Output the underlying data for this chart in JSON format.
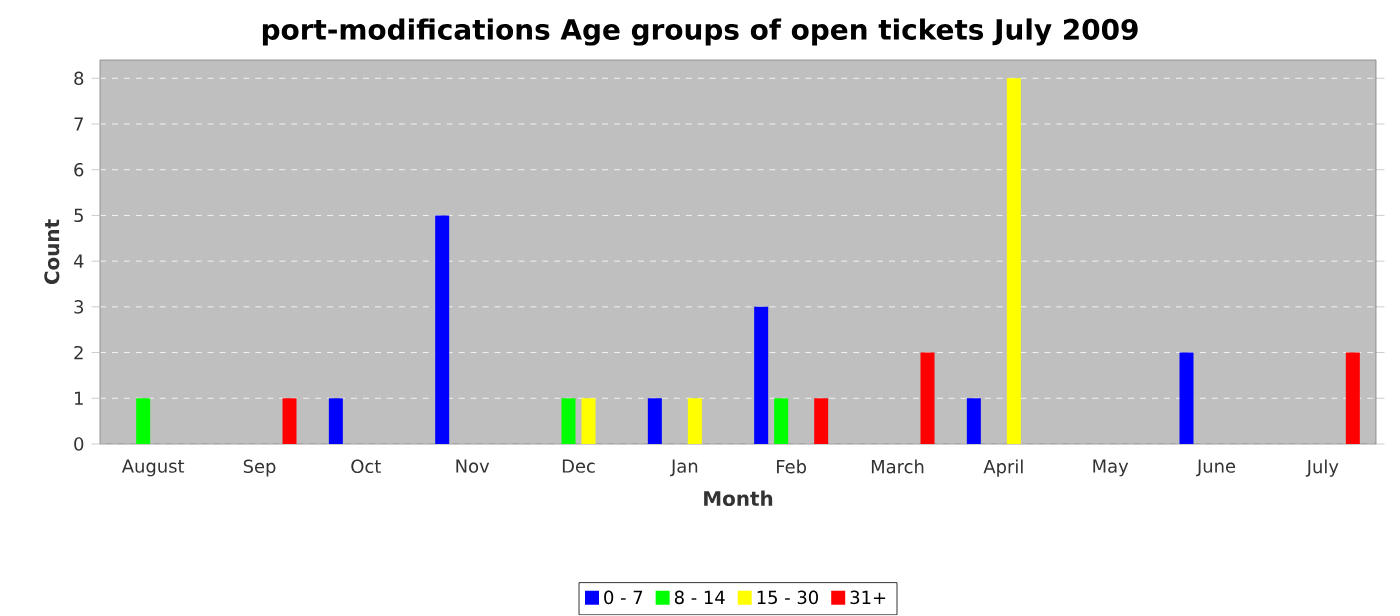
{
  "chart_data": {
    "type": "bar",
    "title": "port-modifications Age groups of open tickets July 2009",
    "xlabel": "Month",
    "ylabel": "Count",
    "categories": [
      "August",
      "Sep",
      "Oct",
      "Nov",
      "Dec",
      "Jan",
      "Feb",
      "March",
      "April",
      "May",
      "June",
      "July"
    ],
    "series": [
      {
        "name": "0 - 7",
        "color": "#0000ff",
        "values": [
          null,
          null,
          1,
          5,
          null,
          1,
          3,
          null,
          1,
          null,
          2,
          null
        ]
      },
      {
        "name": "8 - 14",
        "color": "#00ff00",
        "values": [
          1,
          null,
          null,
          null,
          1,
          null,
          1,
          null,
          null,
          null,
          null,
          null
        ]
      },
      {
        "name": "15 - 30",
        "color": "#ffff00",
        "values": [
          null,
          null,
          null,
          null,
          1,
          1,
          null,
          null,
          8,
          null,
          null,
          null
        ]
      },
      {
        "name": "31+",
        "color": "#ff0000",
        "values": [
          null,
          1,
          null,
          null,
          null,
          null,
          1,
          2,
          null,
          null,
          null,
          2
        ]
      }
    ],
    "ylim": [
      0,
      8.4
    ],
    "yticks": [
      0,
      1,
      2,
      3,
      4,
      5,
      6,
      7,
      8
    ],
    "grid": "y",
    "legend": "bottom"
  }
}
